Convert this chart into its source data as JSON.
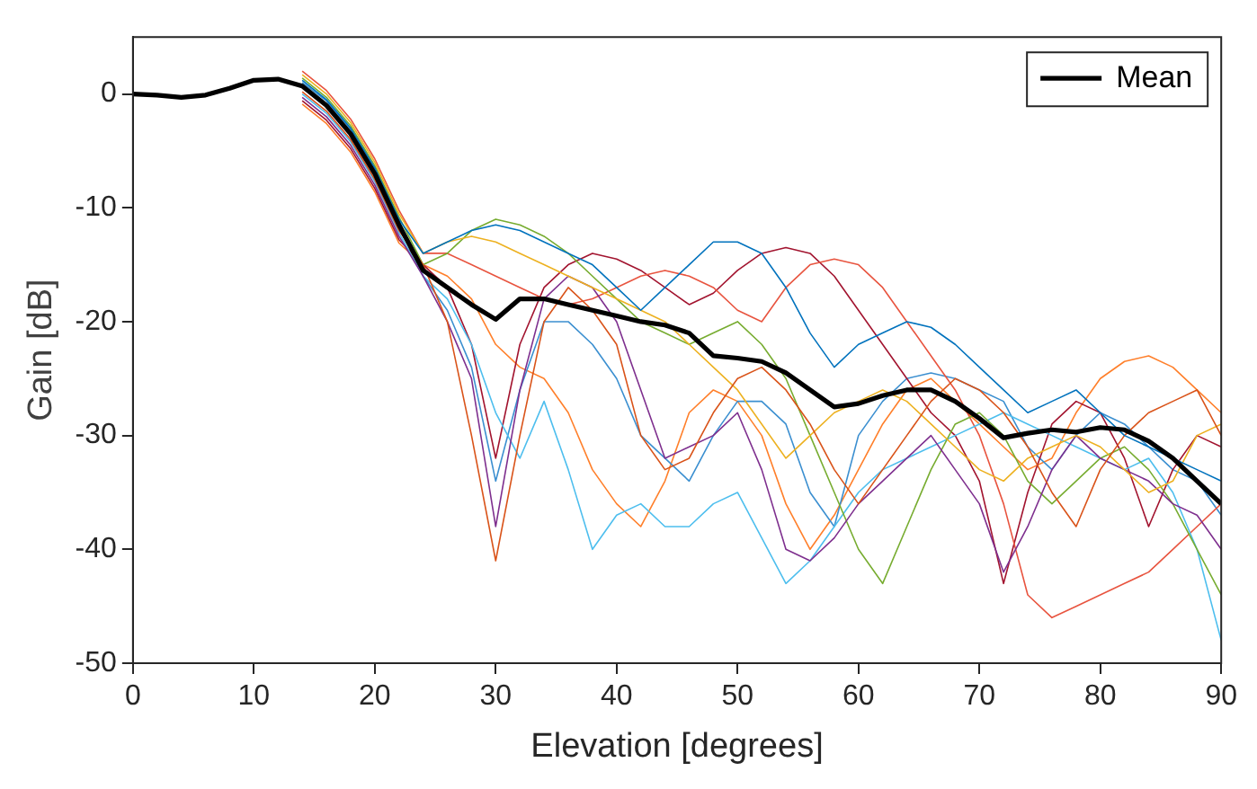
{
  "chart_data": {
    "type": "line",
    "xlabel": "Elevation [degrees]",
    "ylabel": "Gain [dB]",
    "x": [
      0,
      2,
      4,
      6,
      8,
      10,
      12,
      14,
      16,
      18,
      20,
      22,
      24,
      26,
      28,
      30,
      32,
      34,
      36,
      38,
      40,
      42,
      44,
      46,
      48,
      50,
      52,
      54,
      56,
      58,
      60,
      62,
      64,
      66,
      68,
      70,
      72,
      74,
      76,
      78,
      80,
      82,
      84,
      86,
      88,
      90
    ],
    "xlim": [
      0,
      90
    ],
    "xticks": [
      0,
      10,
      20,
      30,
      40,
      50,
      60,
      70,
      80,
      90
    ],
    "ylim": [
      -50,
      5
    ],
    "yticks": [
      -50,
      -40,
      -30,
      -20,
      -10,
      0
    ],
    "grid": false,
    "legend": "top right",
    "marker": "none",
    "line_style": "solid",
    "series": [
      {
        "color": "#0072bd",
        "values": [
          null,
          null,
          null,
          null,
          null,
          null,
          null,
          1.2,
          -0.5,
          -3,
          -6.5,
          -11,
          -14,
          -13,
          -12,
          -11.5,
          -12,
          -13,
          -14,
          -15,
          -17,
          -19,
          -17,
          -15,
          -13,
          -13,
          -14,
          -17,
          -21,
          -24,
          -22,
          -21,
          -20,
          -20.5,
          -22,
          -24,
          -26,
          -28,
          -27,
          -26,
          -28,
          -30,
          -31,
          -32,
          -33,
          -34
        ]
      },
      {
        "color": "#d95319",
        "values": [
          null,
          null,
          null,
          null,
          null,
          null,
          null,
          0.2,
          -1.5,
          -4,
          -7.5,
          -12,
          -15,
          -20,
          -30,
          -41,
          -30,
          -20,
          -17,
          -19,
          -22,
          -30,
          -33,
          -32,
          -28,
          -25,
          -24,
          -26,
          -29,
          -33,
          -36,
          -33,
          -30,
          -27,
          -25,
          -26,
          -28,
          -31,
          -35,
          -38,
          -33,
          -30,
          -28,
          -27,
          -26,
          -30
        ]
      },
      {
        "color": "#edb120",
        "values": [
          null,
          null,
          null,
          null,
          null,
          null,
          null,
          1.7,
          0,
          -2.5,
          -6,
          -10.5,
          -14,
          -13,
          -12.5,
          -13,
          -14,
          -15,
          -16,
          -17,
          -18,
          -19,
          -20,
          -22,
          -24,
          -26,
          -29,
          -32,
          -30,
          -28,
          -27,
          -26,
          -27,
          -29,
          -31,
          -33,
          -34,
          -32,
          -31,
          -30,
          -31,
          -33,
          -35,
          -34,
          -30,
          -29
        ]
      },
      {
        "color": "#7e2f8e",
        "values": [
          null,
          null,
          null,
          null,
          null,
          null,
          null,
          -0.3,
          -2,
          -4.5,
          -8,
          -12.5,
          -16,
          -20,
          -25,
          -38,
          -26,
          -18,
          -16,
          -17,
          -20,
          -26,
          -32,
          -31,
          -30,
          -28,
          -33,
          -40,
          -41,
          -39,
          -36,
          -34,
          -32,
          -30,
          -33,
          -36,
          -42,
          -38,
          -33,
          -30,
          -32,
          -33,
          -34,
          -36,
          -37,
          -40
        ]
      },
      {
        "color": "#77ac30",
        "values": [
          null,
          null,
          null,
          null,
          null,
          null,
          null,
          1.4,
          -0.3,
          -2.8,
          -6.3,
          -10.8,
          -15,
          -14,
          -12,
          -11,
          -11.5,
          -12.5,
          -14,
          -16,
          -18,
          -20,
          -21,
          -22,
          -21,
          -20,
          -22,
          -25,
          -30,
          -35,
          -40,
          -43,
          -38,
          -33,
          -29,
          -28,
          -30,
          -34,
          -36,
          -34,
          -32,
          -31,
          -33,
          -36,
          -40,
          -44
        ]
      },
      {
        "color": "#4dbeee",
        "values": [
          null,
          null,
          null,
          null,
          null,
          null,
          null,
          0,
          -1.7,
          -4.2,
          -7.7,
          -12.2,
          -16,
          -18,
          -22,
          -28,
          -32,
          -27,
          -33,
          -40,
          -37,
          -36,
          -38,
          -38,
          -36,
          -35,
          -39,
          -43,
          -41,
          -38,
          -35,
          -33,
          -32,
          -31,
          -30,
          -29,
          -28,
          -29,
          -30,
          -31,
          -32,
          -33,
          -32,
          -35,
          -40,
          -48
        ]
      },
      {
        "color": "#e8543f",
        "values": [
          null,
          null,
          null,
          null,
          null,
          null,
          null,
          2,
          0.3,
          -2.2,
          -5.7,
          -10.2,
          -14,
          -14,
          -15,
          -16,
          -17,
          -18,
          -18.5,
          -18,
          -17,
          -16,
          -15.5,
          -16,
          -17,
          -19,
          -20,
          -17,
          -15,
          -14.5,
          -15,
          -17,
          -20,
          -23,
          -26,
          -30,
          -36,
          -44,
          -46,
          -45,
          -44,
          -43,
          -42,
          -40,
          -38,
          -36
        ]
      },
      {
        "color": "#a2142f",
        "values": [
          null,
          null,
          null,
          null,
          null,
          null,
          null,
          -0.6,
          -2.3,
          -4.8,
          -8.3,
          -12.8,
          -15,
          -17,
          -22,
          -32,
          -22,
          -17,
          -15,
          -14,
          -14.5,
          -15.5,
          -17,
          -18.5,
          -17.5,
          -15.5,
          -14,
          -13.5,
          -14,
          -16,
          -19,
          -22,
          -25,
          -28,
          -30,
          -34,
          -43,
          -35,
          -29,
          -27,
          -28,
          -32,
          -38,
          -33,
          -30,
          -31
        ]
      },
      {
        "color": "#3b8fd0",
        "values": [
          null,
          null,
          null,
          null,
          null,
          null,
          null,
          1,
          -0.6,
          -3.1,
          -6.6,
          -11.1,
          -16,
          -19,
          -24,
          -34,
          -26,
          -20,
          -20,
          -22,
          -25,
          -30,
          -32,
          -34,
          -30,
          -27,
          -27,
          -29,
          -35,
          -38,
          -30,
          -27,
          -25,
          -24.5,
          -25,
          -26,
          -27,
          -31,
          -33,
          -30,
          -28,
          -29,
          -31,
          -33,
          -34,
          -37
        ]
      },
      {
        "color": "#ff7f2a",
        "values": [
          null,
          null,
          null,
          null,
          null,
          null,
          null,
          -0.9,
          -2.6,
          -5.1,
          -8.6,
          -13.1,
          -15,
          -16,
          -18,
          -22,
          -24,
          -25,
          -28,
          -33,
          -36,
          -38,
          -34,
          -28,
          -26,
          -27,
          -30,
          -36,
          -40,
          -37,
          -33,
          -29,
          -26,
          -25,
          -27,
          -29,
          -31,
          -33,
          -32,
          -28,
          -25,
          -23.5,
          -23,
          -24,
          -26,
          -28
        ]
      },
      {
        "name": "Mean",
        "color": "#000000",
        "values": [
          0,
          -0.1,
          -0.3,
          -0.1,
          0.5,
          1.2,
          1.3,
          0.7,
          -1,
          -3.5,
          -7,
          -11.5,
          -15.5,
          -17,
          -18.5,
          -19.8,
          -18,
          -18,
          -18.5,
          -19,
          -19.5,
          -20,
          -20.3,
          -21,
          -23,
          -23.2,
          -23.5,
          -24.5,
          -26,
          -27.5,
          -27.2,
          -26.5,
          -26,
          -26,
          -27,
          -28.5,
          -30.2,
          -29.8,
          -29.5,
          -29.7,
          -29.3,
          -29.5,
          -30.5,
          -32,
          -34,
          -36
        ]
      }
    ]
  }
}
